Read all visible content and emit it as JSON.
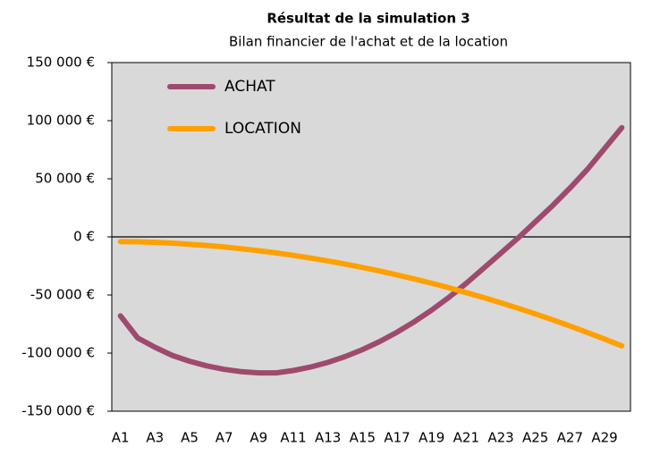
{
  "chart_data": {
    "type": "line",
    "title": "Résultat de la simulation 3",
    "subtitle": "Bilan financier de l'achat et de la location",
    "categories": [
      "A1",
      null,
      "A3",
      null,
      "A5",
      null,
      "A7",
      null,
      "A9",
      null,
      "A11",
      null,
      "A13",
      null,
      "A15",
      null,
      "A17",
      null,
      "A19",
      null,
      "A21",
      null,
      "A23",
      null,
      "A25",
      null,
      "A27",
      null,
      "A29",
      null
    ],
    "series": [
      {
        "name": "ACHAT",
        "color": "#9e4a6e",
        "values": [
          -68000,
          -87000,
          -95000,
          -102000,
          -107000,
          -111000,
          -114000,
          -116000,
          -117000,
          -117000,
          -115000,
          -112000,
          -108000,
          -103000,
          -97000,
          -90000,
          -82000,
          -73000,
          -63000,
          -52000,
          -40000,
          -27000,
          -14000,
          -1000,
          13000,
          27000,
          42000,
          58000,
          76000,
          94000
        ]
      },
      {
        "name": "LOCATION",
        "color": "#ffa000",
        "values": [
          -4000,
          -4200,
          -4700,
          -5400,
          -6300,
          -7400,
          -8700,
          -10200,
          -11900,
          -13800,
          -15900,
          -18200,
          -20700,
          -23400,
          -26300,
          -29400,
          -32700,
          -36200,
          -39900,
          -43800,
          -47900,
          -52200,
          -56700,
          -61400,
          -66300,
          -71400,
          -76700,
          -82200,
          -87900,
          -93800
        ]
      }
    ],
    "ylim": [
      -150000,
      150000
    ],
    "yticks": [
      {
        "value": -150000,
        "label": "-150 000 €"
      },
      {
        "value": -100000,
        "label": "-100 000 €"
      },
      {
        "value": -50000,
        "label": "-50 000 €"
      },
      {
        "value": 0,
        "label": "0 €"
      },
      {
        "value": 50000,
        "label": "50 000 €"
      },
      {
        "value": 100000,
        "label": "100 000 €"
      },
      {
        "value": 150000,
        "label": "150 000 €"
      }
    ],
    "legend": "top-left"
  }
}
